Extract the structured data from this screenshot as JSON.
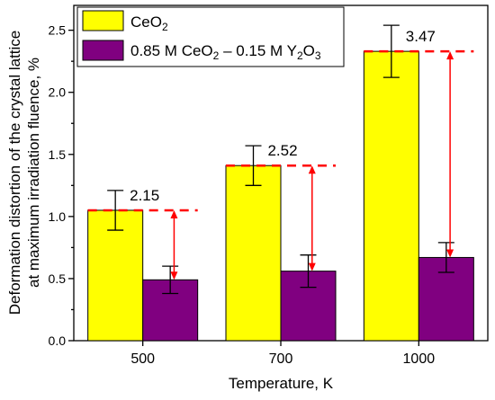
{
  "chart_data": {
    "type": "bar",
    "xlabel": "Temperature, K",
    "ylabel_lines": [
      "Deformation distortion of the crystal lattice",
      "at maximum irradiation fluence, %"
    ],
    "categories": [
      "500",
      "700",
      "1000"
    ],
    "ylim": [
      0,
      2.7
    ],
    "yticks": [
      "0.0",
      "0.5",
      "1.0",
      "1.5",
      "2.0",
      "2.5"
    ],
    "grid": false,
    "legend_position": "top-left",
    "series": [
      {
        "name_parts": {
          "base": "CeO",
          "sub": "2"
        },
        "color": "#ffff00",
        "values": [
          1.05,
          1.41,
          2.33
        ],
        "err_low": [
          0.89,
          1.25,
          2.12
        ],
        "err_high": [
          1.21,
          1.57,
          2.54
        ]
      },
      {
        "name_parts": {
          "p1": "0.85 M CeO",
          "s1": "2",
          "p2": " – 0.15 M Y",
          "s2": "2",
          "p3": "O",
          "s3": "3"
        },
        "color": "#800080",
        "values": [
          0.49,
          0.56,
          0.67
        ],
        "err_low": [
          0.38,
          0.43,
          0.55
        ],
        "err_high": [
          0.6,
          0.69,
          0.79
        ]
      }
    ],
    "ratio_labels": [
      "2.15",
      "2.52",
      "3.47"
    ],
    "annotation_color": "#ff0000"
  }
}
